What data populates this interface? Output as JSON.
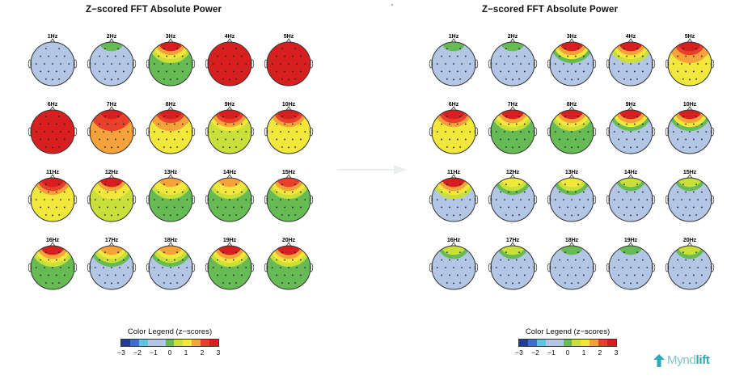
{
  "panels": {
    "left": {
      "title": "Z−scored FFT Absolute Power",
      "maps": [
        {
          "label": "1Hz",
          "level": 0,
          "hot": 0.3
        },
        {
          "label": "2Hz",
          "level": 0,
          "hot": 1
        },
        {
          "label": "3Hz",
          "level": 1,
          "hot": 3
        },
        {
          "label": "4Hz",
          "level": 3,
          "hot": 3
        },
        {
          "label": "5Hz",
          "level": 3,
          "hot": 3
        },
        {
          "label": "6Hz",
          "level": 3,
          "hot": 3
        },
        {
          "label": "7Hz",
          "level": 2.5,
          "hot": 3
        },
        {
          "label": "8Hz",
          "level": 2,
          "hot": 3
        },
        {
          "label": "9Hz",
          "level": 1.6,
          "hot": 3
        },
        {
          "label": "10Hz",
          "level": 1.8,
          "hot": 3
        },
        {
          "label": "11Hz",
          "level": 1.8,
          "hot": 3
        },
        {
          "label": "12Hz",
          "level": 1.3,
          "hot": 3
        },
        {
          "label": "13Hz",
          "level": 1,
          "hot": 2.5
        },
        {
          "label": "14Hz",
          "level": 1,
          "hot": 2.5
        },
        {
          "label": "15Hz",
          "level": 1,
          "hot": 2.8
        },
        {
          "label": "16Hz",
          "level": 1.2,
          "hot": 3
        },
        {
          "label": "17Hz",
          "level": 0.8,
          "hot": 2.5
        },
        {
          "label": "18Hz",
          "level": 0.8,
          "hot": 2.3
        },
        {
          "label": "19Hz",
          "level": 1,
          "hot": 3
        },
        {
          "label": "20Hz",
          "level": 1.2,
          "hot": 3
        }
      ]
    },
    "right": {
      "title": "Z−scored FFT Absolute Power",
      "maps": [
        {
          "label": "1Hz",
          "level": 0,
          "hot": 1
        },
        {
          "label": "2Hz",
          "level": 0,
          "hot": 1
        },
        {
          "label": "3Hz",
          "level": 0.6,
          "hot": 3
        },
        {
          "label": "4Hz",
          "level": 0.8,
          "hot": 3
        },
        {
          "label": "5Hz",
          "level": 2,
          "hot": 3
        },
        {
          "label": "6Hz",
          "level": 1.8,
          "hot": 3
        },
        {
          "label": "7Hz",
          "level": 1.2,
          "hot": 3
        },
        {
          "label": "8Hz",
          "level": 1,
          "hot": 3
        },
        {
          "label": "9Hz",
          "level": 0.4,
          "hot": 3
        },
        {
          "label": "10Hz",
          "level": 0.5,
          "hot": 3
        },
        {
          "label": "11Hz",
          "level": 0.8,
          "hot": 3
        },
        {
          "label": "12Hz",
          "level": 0,
          "hot": 2
        },
        {
          "label": "13Hz",
          "level": 0,
          "hot": 1.8
        },
        {
          "label": "14Hz",
          "level": 0,
          "hot": 1.5
        },
        {
          "label": "15Hz",
          "level": 0,
          "hot": 1.6
        },
        {
          "label": "16Hz",
          "level": 0,
          "hot": 1.5
        },
        {
          "label": "17Hz",
          "level": 0,
          "hot": 1.4
        },
        {
          "label": "18Hz",
          "level": 0,
          "hot": 1.2
        },
        {
          "label": "19Hz",
          "level": 0,
          "hot": 1
        },
        {
          "label": "20Hz",
          "level": 0,
          "hot": 1.3
        }
      ]
    }
  },
  "legend": {
    "title": "Color Legend (z−scores)",
    "ticks": [
      "−3",
      "−2",
      "−1",
      "0",
      "1",
      "2",
      "3"
    ],
    "colors": [
      "#1f3c9a",
      "#3d6fd1",
      "#5ec6e0",
      "#b3c6e6",
      "#b3c6e6",
      "#66bb55",
      "#c9df3a",
      "#f2e83b",
      "#f6a23a",
      "#e8402b",
      "#d81f1f"
    ]
  },
  "logo": {
    "text_a": "Mynd",
    "text_b": "lift"
  },
  "colors": {
    "arrow": "#e9eef0",
    "logo": "#2aa9b6"
  }
}
